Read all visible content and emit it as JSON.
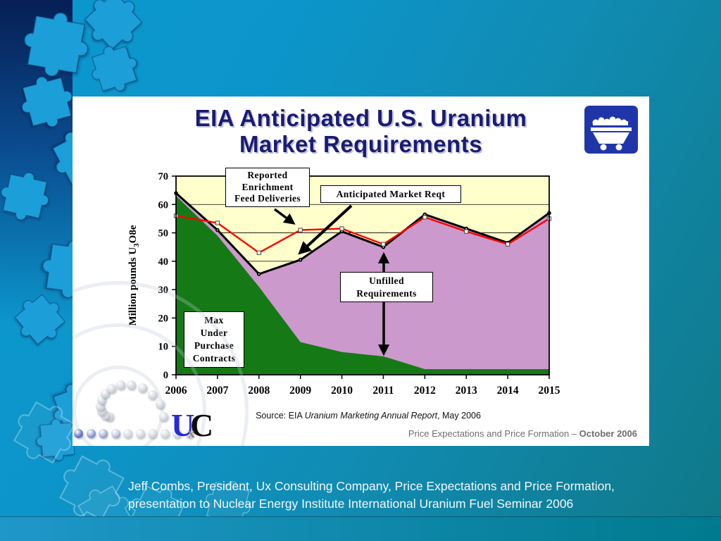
{
  "slide": {
    "title_line1": "EIA Anticipated U.S. Uranium",
    "title_line2": "Market Requirements",
    "source": {
      "prefix": "Source: EIA ",
      "italic": "Uranium Marketing Annual Report",
      "suffix": ", May 2006"
    },
    "footer_right": {
      "regular": "Price Expectations and Price Formation – ",
      "bold": "October 2006"
    },
    "logo": {
      "u": "U",
      "x_small": "x",
      "c": "C"
    }
  },
  "annotations": {
    "reported": [
      "Reported",
      "Enrichment",
      "Feed Deliveries"
    ],
    "anticipated": "Anticipated Market Reqt",
    "unfilled": [
      "Unfilled",
      "Requirements"
    ],
    "max_contracts": [
      "Max",
      "Under",
      "Purchase",
      "Contracts"
    ]
  },
  "caption": "Jeff Combs, President, Ux Consulting Company, Price Expectations and Price Formation, presentation to Nuclear Energy Institute International Uranium Fuel Seminar 2006",
  "chart_data": {
    "type": "area",
    "title": "EIA Anticipated U.S. Uranium Market Requirements",
    "x": [
      "2006",
      "2007",
      "2008",
      "2009",
      "2010",
      "2011",
      "2012",
      "2013",
      "2014",
      "2015"
    ],
    "ylabel": "Million pounds U3O8e",
    "ylabel_parts": [
      "Million pounds U",
      "3",
      "O8e"
    ],
    "ylim": [
      0,
      70
    ],
    "ytick_step": 10,
    "grid": true,
    "legend_position": "annotation-callouts",
    "plot_bg": "#FFFFCC",
    "series": [
      {
        "name": "Max Under Purchase Contracts",
        "kind": "area",
        "color": "#157A15",
        "values": [
          63,
          49,
          31,
          11.5,
          8,
          6.5,
          2,
          2,
          2,
          2
        ]
      },
      {
        "name": "Anticipated Market Reqt",
        "kind": "line-area",
        "line_color": "#000000",
        "area_color": "#CC99CC",
        "values": [
          64,
          51,
          35.5,
          40.5,
          50.5,
          45,
          56.5,
          51.5,
          46.5,
          57
        ]
      },
      {
        "name": "Reported Enrichment Feed Deliveries",
        "kind": "line",
        "line_color": "#FF0000",
        "values": [
          56,
          53.5,
          43,
          51,
          51.5,
          46,
          55.5,
          50.5,
          46,
          55
        ]
      }
    ]
  }
}
